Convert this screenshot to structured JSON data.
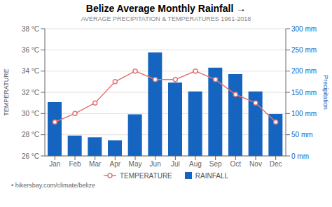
{
  "chart_data": {
    "type": "bar",
    "title": "Belize Average Monthly Rainfall →",
    "subtitle": "AVERAGE PRECIPITATION & TEMPERATURES 1961-2018",
    "footer": "• hikersbay.com/climate/belize",
    "categories": [
      "Jan",
      "Feb",
      "Mar",
      "Apr",
      "May",
      "Jun",
      "Jul",
      "Aug",
      "Sep",
      "Oct",
      "Nov",
      "Dec"
    ],
    "series": [
      {
        "name": "TEMPERATURE",
        "type": "line",
        "color": "#E57373",
        "marker": "circle",
        "values": [
          29.2,
          30.0,
          31.0,
          33.0,
          34.0,
          33.2,
          33.2,
          34.0,
          33.2,
          31.8,
          31.0,
          29.2
        ]
      },
      {
        "name": "RAINFALL",
        "type": "bar",
        "color": "#1565C0",
        "axis": "y2",
        "values": [
          127,
          48,
          44,
          37,
          98,
          244,
          173,
          152,
          208,
          193,
          152,
          99
        ]
      }
    ],
    "ylabel": "TEMPERATURE",
    "y2label": "Precipitation",
    "ylim": [
      26,
      38
    ],
    "yticks": [
      {
        "value": 26,
        "label": "26 °C"
      },
      {
        "value": 28,
        "label": "28 °C"
      },
      {
        "value": 30,
        "label": "30 °C"
      },
      {
        "value": 32,
        "label": "32 °C"
      },
      {
        "value": 34,
        "label": "34 °C"
      },
      {
        "value": 36,
        "label": "36 °C"
      },
      {
        "value": 38,
        "label": "38 °C"
      }
    ],
    "y2lim": [
      0,
      300
    ],
    "y2ticks": [
      {
        "value": 0,
        "label": "0 mm"
      },
      {
        "value": 50,
        "label": "50 mm"
      },
      {
        "value": 100,
        "label": "100 mm"
      },
      {
        "value": 150,
        "label": "150 mm"
      },
      {
        "value": 200,
        "label": "200 mm"
      },
      {
        "value": 250,
        "label": "250 mm"
      },
      {
        "value": 300,
        "label": "300 mm"
      }
    ],
    "grid": true,
    "legend": "bottom"
  }
}
